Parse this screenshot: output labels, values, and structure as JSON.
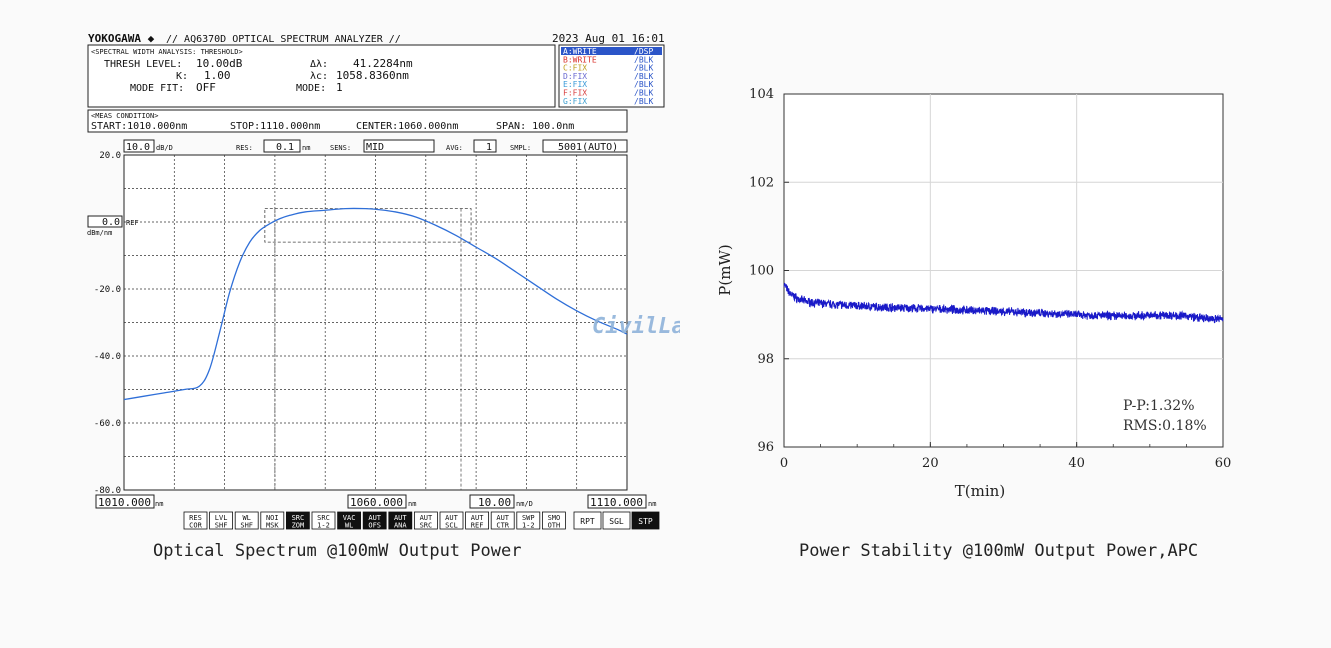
{
  "captions": {
    "left": "Optical Spectrum @100mW Output Power",
    "right": "Power Stability @100mW Output Power,APC"
  },
  "osa": {
    "brand": "YOKOGAWA ◆",
    "model": "// AQ6370D OPTICAL SPECTRUM ANALYZER //",
    "datetime": "2023 Aug 01 16:01",
    "analysis": {
      "header": "<SPECTRAL WIDTH ANALYSIS: THRESHOLD>",
      "thresh_label": "THRESH LEVEL:",
      "thresh_value": "10.00dB",
      "k_label": "K:",
      "k_value": "1.00",
      "modefit_label": "MODE FIT:",
      "modefit_value": "OFF",
      "dl_label": "Δλ:",
      "dl_value": "41.2284nm",
      "lc_label": "λc:",
      "lc_value": "1058.8360nm",
      "mode_label": "MODE:",
      "mode_value": "1"
    },
    "traces": [
      {
        "label": "A:WRITE",
        "status": "/DSP",
        "color": "#ffffff",
        "bg": "#2b55c8"
      },
      {
        "label": "B:WRITE",
        "status": "/BLK",
        "color": "#d9322b",
        "bg": ""
      },
      {
        "label": "C:FIX",
        "status": "/BLK",
        "color": "#c0a020",
        "bg": ""
      },
      {
        "label": "D:FIX",
        "status": "/BLK",
        "color": "#6a6ad0",
        "bg": ""
      },
      {
        "label": "E:FIX",
        "status": "/BLK",
        "color": "#3a9ad8",
        "bg": ""
      },
      {
        "label": "F:FIX",
        "status": "/BLK",
        "color": "#d94040",
        "bg": ""
      },
      {
        "label": "G:FIX",
        "status": "/BLK",
        "color": "#40a0d0",
        "bg": ""
      }
    ],
    "trace_status_color": "#2b55c8",
    "meas": {
      "header": "<MEAS CONDITION>",
      "start": "START:1010.000nm",
      "stop": "STOP:1110.000nm",
      "center": "CENTER:1060.000nm",
      "span": "SPAN: 100.0nm"
    },
    "settings": {
      "scale_value": "10.0",
      "scale_unit": "dB/D",
      "res_label": "RES:",
      "res_value": "0.1",
      "res_unit": "nm",
      "sens_label": "SENS:",
      "sens_value": "MID",
      "avg_label": "AVG:",
      "avg_value": "1",
      "smpl_label": "SMPL:",
      "smpl_value": "5001(AUTO)"
    },
    "ref_value": "0.0",
    "ref_label": "REF",
    "ref_unit": "dBm/nm",
    "bottom": {
      "start_value": "1010.000",
      "center_value": "1060.000",
      "span_value": "10.00",
      "span_unit": "nm/D",
      "stop_value": "1110.000",
      "unit": "nm"
    },
    "buttons": [
      {
        "l1": "RES",
        "l2": "COR",
        "active": false
      },
      {
        "l1": "LVL",
        "l2": "SHF",
        "active": false
      },
      {
        "l1": "WL",
        "l2": "SHF",
        "active": false
      },
      {
        "l1": "NOI",
        "l2": "MSK",
        "active": false
      },
      {
        "l1": "SRC",
        "l2": "ZOM",
        "active": true
      },
      {
        "l1": "SRC",
        "l2": "1-2",
        "active": false
      },
      {
        "l1": "VAC",
        "l2": "WL",
        "active": true
      },
      {
        "l1": "AUT",
        "l2": "OFS",
        "active": true
      },
      {
        "l1": "AUT",
        "l2": "ANA",
        "active": true
      },
      {
        "l1": "AUT",
        "l2": "SRC",
        "active": false
      },
      {
        "l1": "AUT",
        "l2": "SCL",
        "active": false
      },
      {
        "l1": "AUT",
        "l2": "REF",
        "active": false
      },
      {
        "l1": "AUT",
        "l2": "CTR",
        "active": false
      },
      {
        "l1": "SWP",
        "l2": "1-2",
        "active": false
      },
      {
        "l1": "SMO",
        "l2": "OTH",
        "active": false
      }
    ],
    "sweep_buttons": [
      {
        "label": "RPT",
        "active": false
      },
      {
        "label": "SGL",
        "active": false
      },
      {
        "label": "STP",
        "active": true
      }
    ]
  },
  "chart_data": [
    {
      "type": "line",
      "xlabel": "",
      "ylabel": "",
      "xlim": [
        1010,
        1110
      ],
      "ylim": [
        -80,
        20
      ],
      "y_ticks": [
        "20.0",
        "-20.0",
        "-40.0",
        "-60.0",
        "-80.0"
      ],
      "grid": true,
      "line_color": "#2f6fd8",
      "series": [
        {
          "x": [
            1010,
            1014,
            1018,
            1022,
            1025,
            1027,
            1029,
            1031,
            1033,
            1035,
            1037,
            1039,
            1041,
            1043,
            1046,
            1050,
            1054,
            1058,
            1060,
            1064,
            1068,
            1072,
            1076,
            1080,
            1084,
            1088,
            1092,
            1096,
            1100,
            1104,
            1108,
            1110
          ],
          "y": [
            -53,
            -52,
            -51,
            -50,
            -49,
            -44,
            -33,
            -21,
            -12,
            -6,
            -2.5,
            -0.5,
            1,
            2,
            3,
            3.5,
            4,
            4,
            3.8,
            3,
            1.5,
            -1,
            -4,
            -7.5,
            -11,
            -15,
            -19,
            -23,
            -26.5,
            -29.5,
            -32,
            -33.5
          ]
        }
      ],
      "annotation_box": {
        "x": [
          1038,
          1079
        ],
        "y": [
          -6,
          4
        ]
      }
    },
    {
      "type": "line",
      "xlabel": "T(min)",
      "ylabel": "P(mW)",
      "xlim": [
        0,
        60
      ],
      "ylim": [
        96,
        104
      ],
      "x_ticks": [
        0,
        20,
        40,
        60
      ],
      "y_ticks": [
        96,
        98,
        100,
        102,
        104
      ],
      "grid": true,
      "line_color": "#1a1ac8",
      "annotations": [
        "P-P:1.32%",
        "RMS:0.18%"
      ],
      "series": [
        {
          "x": [
            0,
            0.5,
            1,
            2,
            3,
            4,
            6,
            8,
            10,
            12,
            15,
            18,
            20,
            22,
            25,
            28,
            30,
            33,
            36,
            40,
            43,
            46,
            50,
            52,
            55,
            57,
            58,
            60
          ],
          "y": [
            99.7,
            99.55,
            99.45,
            99.35,
            99.3,
            99.27,
            99.24,
            99.22,
            99.2,
            99.18,
            99.16,
            99.14,
            99.13,
            99.12,
            99.1,
            99.08,
            99.07,
            99.05,
            99.03,
            99.0,
            98.98,
            98.97,
            98.98,
            98.99,
            98.97,
            98.92,
            98.9,
            98.91
          ]
        }
      ]
    }
  ]
}
